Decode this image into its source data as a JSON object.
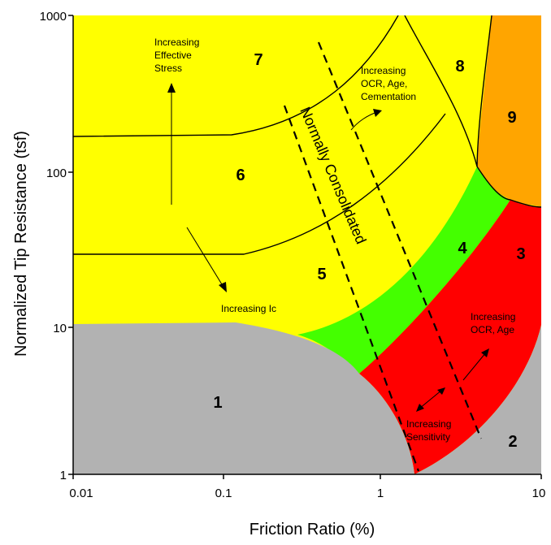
{
  "chart_data": {
    "type": "area",
    "title": "",
    "xlabel": "Friction Ratio (%)",
    "ylabel": "Normalized Tip Resistance (tsf)",
    "x_scale": "log",
    "y_scale": "log",
    "xlim": [
      0.01,
      10
    ],
    "ylim": [
      1,
      1000
    ],
    "x_ticks": [
      "0.01",
      "0.1",
      "1",
      "10"
    ],
    "y_ticks": [
      "1",
      "10",
      "100",
      "1000"
    ],
    "grid": false,
    "zones": [
      {
        "label": "1",
        "color": "#b2b2b2"
      },
      {
        "label": "2",
        "color": "#b2b2b2"
      },
      {
        "label": "3",
        "color": "#ff0000"
      },
      {
        "label": "4",
        "color": "#44ff00"
      },
      {
        "label": "5",
        "color": "#ffff00"
      },
      {
        "label": "6",
        "color": "#ffff00"
      },
      {
        "label": "7",
        "color": "#ffff00"
      },
      {
        "label": "8",
        "color": "#ffff00"
      },
      {
        "label": "9",
        "color": "#ffa500"
      }
    ],
    "annotations": [
      {
        "id": "effective_stress",
        "lines": [
          "Increasing",
          "Effective",
          "Stress"
        ]
      },
      {
        "id": "ocr_age_cementation",
        "lines": [
          "Increasing",
          "OCR, Age,",
          "Cementation"
        ]
      },
      {
        "id": "ic",
        "lines": [
          "Increasing Ic"
        ]
      },
      {
        "id": "ocr_age",
        "lines": [
          "Increasing",
          "OCR, Age"
        ]
      },
      {
        "id": "sensitivity",
        "lines": [
          "Increasing",
          "Sensitivity"
        ]
      }
    ],
    "normally_consolidated_label": "Normally Consolidated"
  }
}
